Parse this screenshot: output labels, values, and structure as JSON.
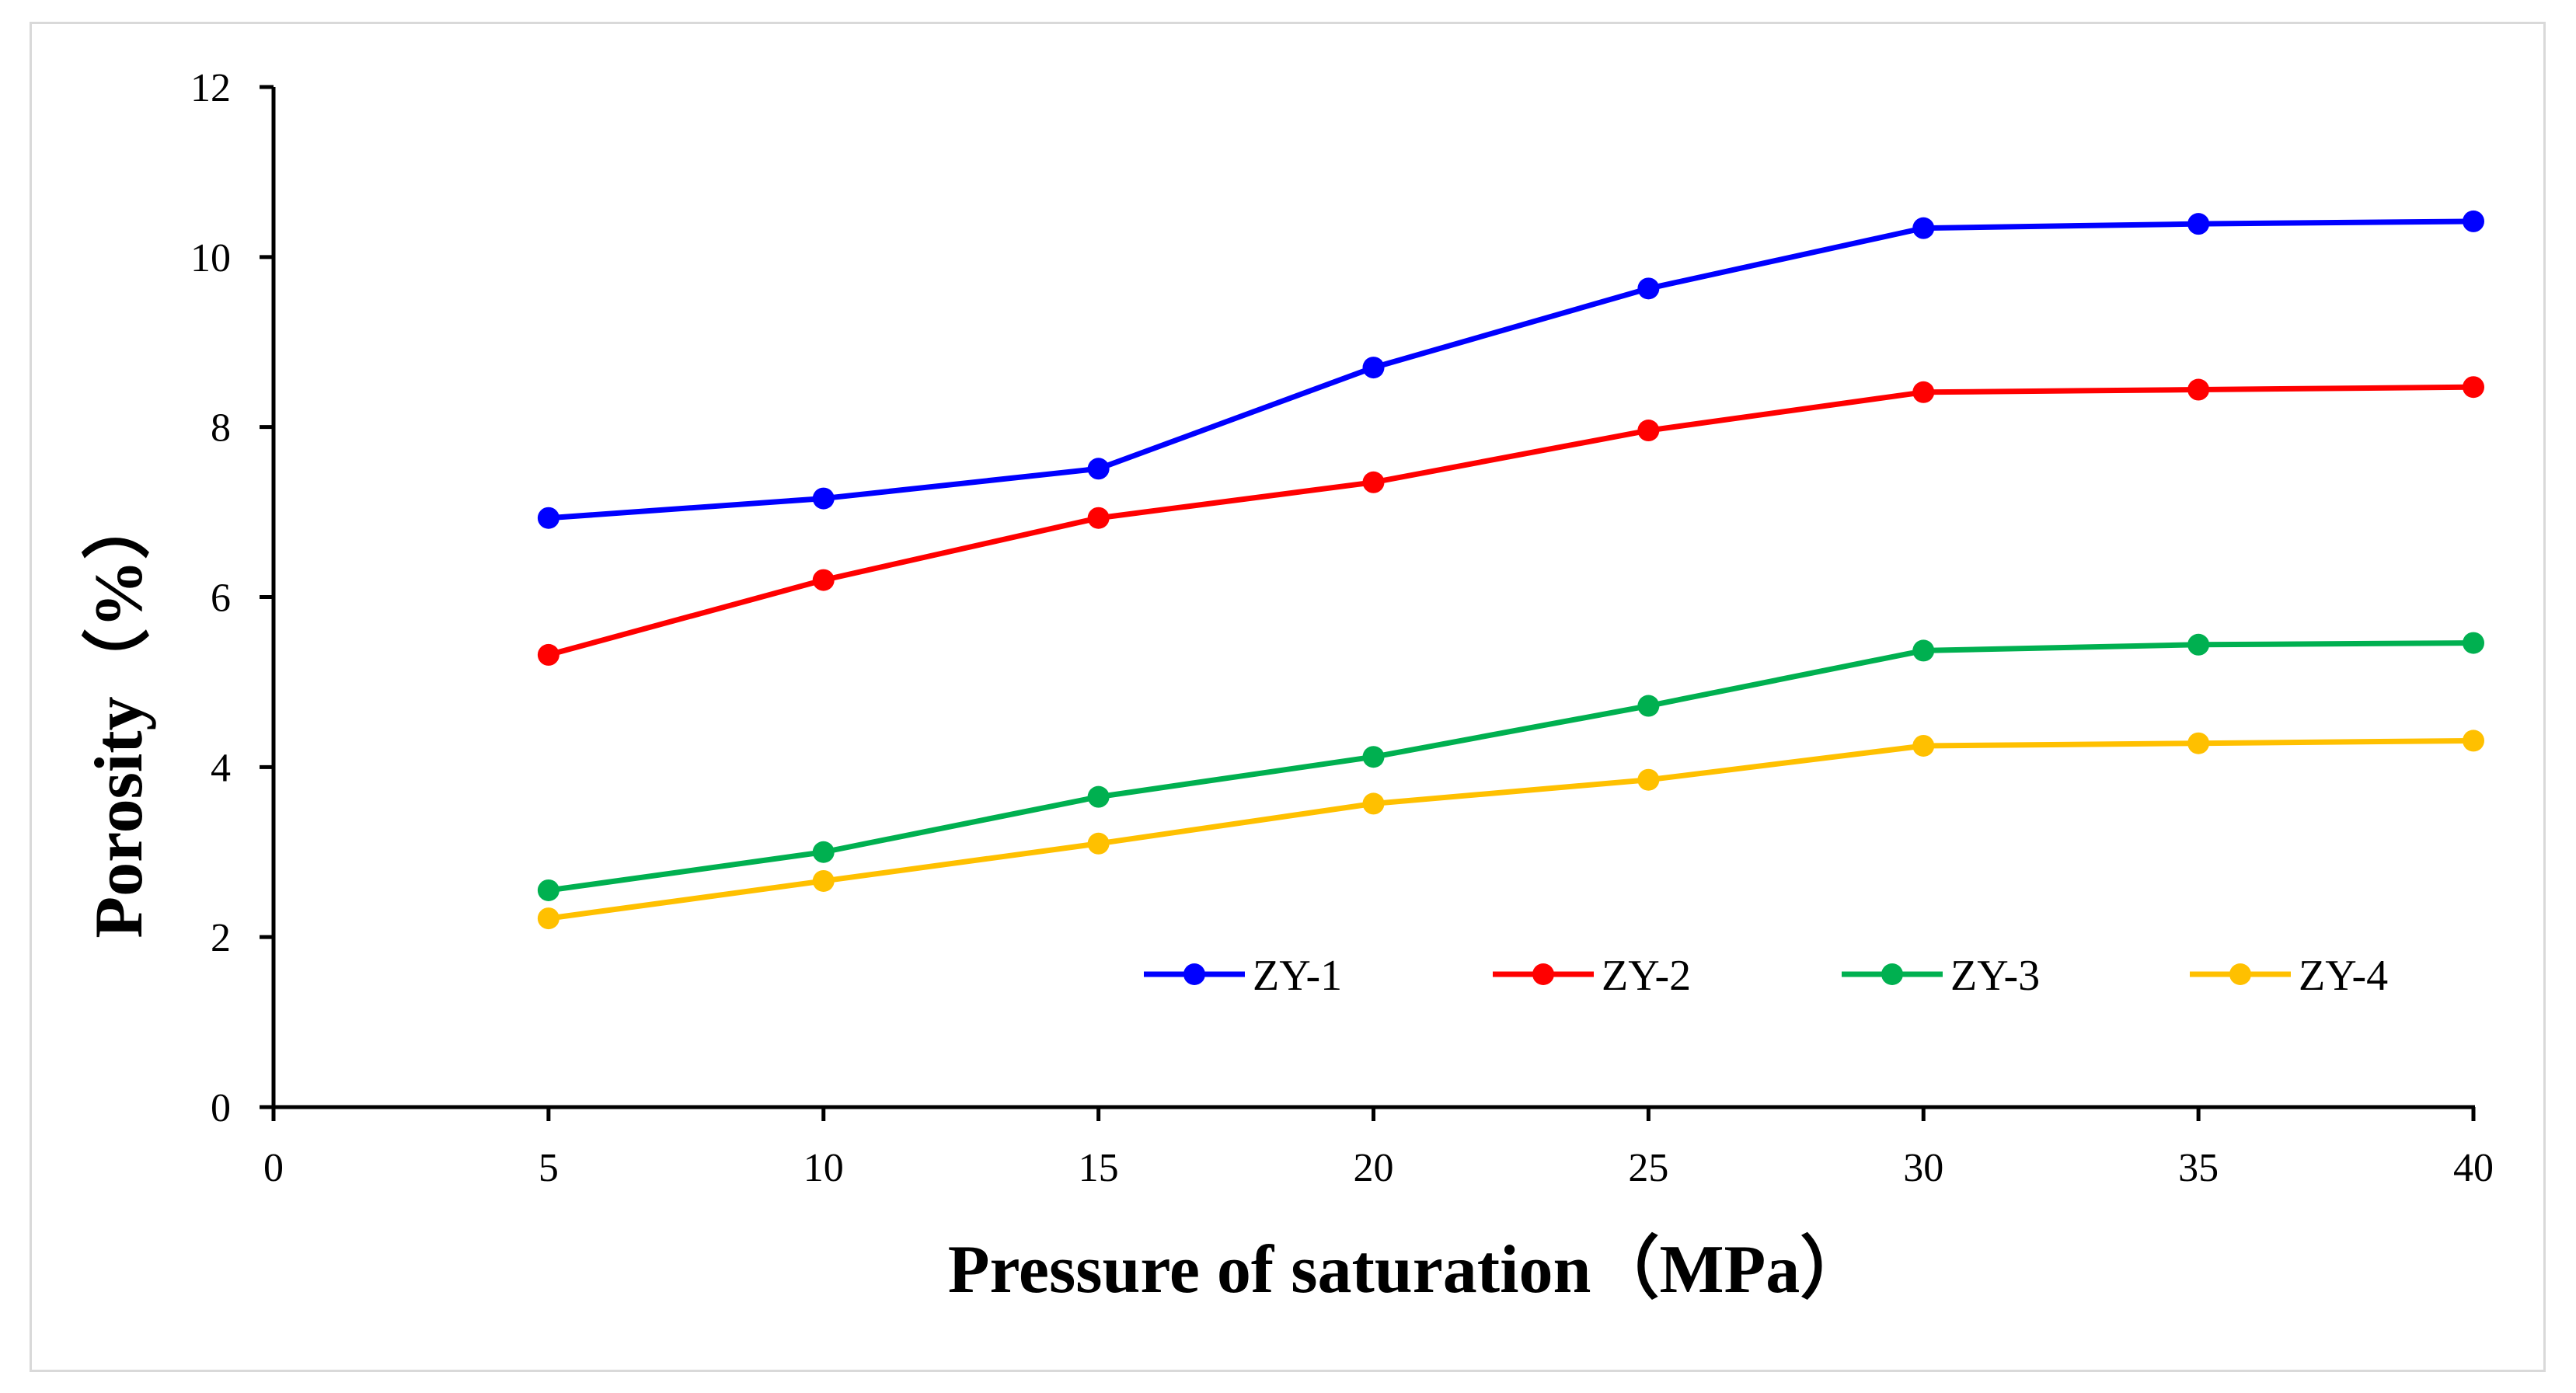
{
  "chart_data": {
    "type": "line",
    "title": "",
    "xlabel": "Pressure of saturation（MPa）",
    "ylabel": "Porosity（%）",
    "xlim": [
      0,
      40
    ],
    "ylim": [
      0,
      12
    ],
    "x_ticks": [
      0,
      5,
      10,
      15,
      20,
      25,
      30,
      35,
      40
    ],
    "y_ticks": [
      0,
      2,
      4,
      6,
      8,
      10,
      12
    ],
    "grid": false,
    "legend_position": "bottom-right",
    "x": [
      5,
      10,
      15,
      20,
      25,
      30,
      35,
      40
    ],
    "series": [
      {
        "name": "ZY-1",
        "color": "#0000ff",
        "values": [
          6.93,
          7.16,
          7.51,
          8.7,
          9.63,
          10.34,
          10.39,
          10.42
        ]
      },
      {
        "name": "ZY-2",
        "color": "#ff0000",
        "values": [
          5.32,
          6.2,
          6.93,
          7.35,
          7.96,
          8.41,
          8.44,
          8.47
        ]
      },
      {
        "name": "ZY-3",
        "color": "#00b050",
        "values": [
          2.55,
          3.0,
          3.65,
          4.12,
          4.72,
          5.37,
          5.44,
          5.46
        ]
      },
      {
        "name": "ZY-4",
        "color": "#ffc000",
        "values": [
          2.22,
          2.66,
          3.1,
          3.57,
          3.85,
          4.25,
          4.28,
          4.31
        ]
      }
    ]
  }
}
